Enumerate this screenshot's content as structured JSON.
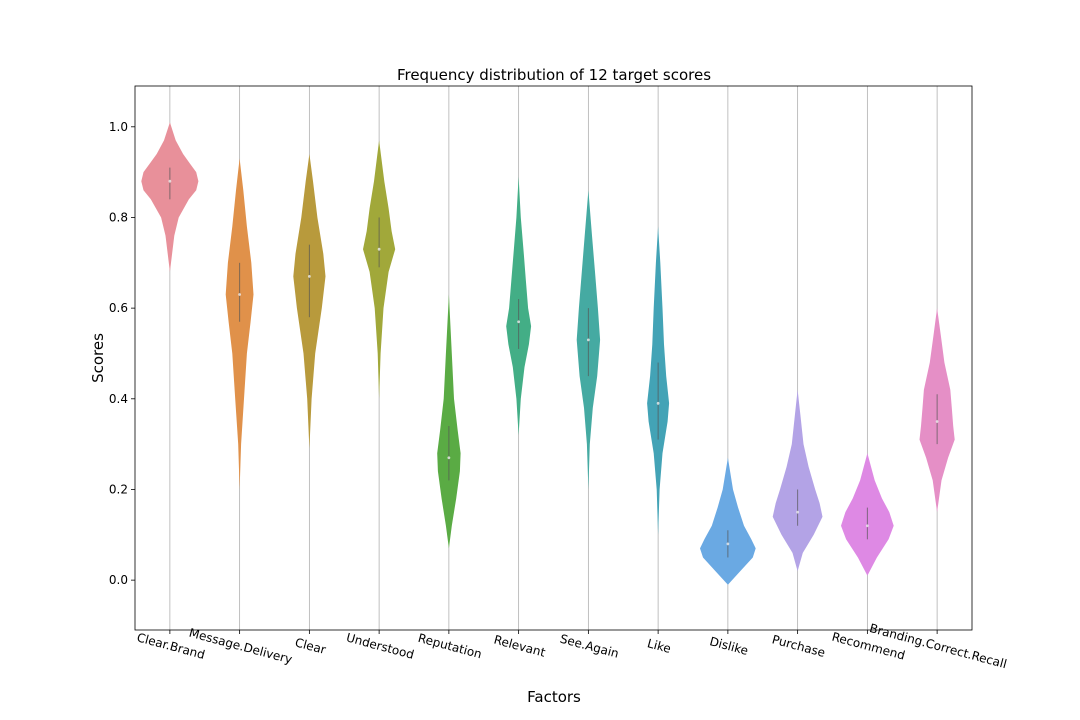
{
  "chart_data": {
    "type": "violin",
    "title": "Frequency distribution of 12 target scores",
    "xlabel": "Factors",
    "ylabel": "Scores",
    "ylim": [
      -0.11,
      1.09
    ],
    "yticks": [
      0.0,
      0.2,
      0.4,
      0.6,
      0.8,
      1.0
    ],
    "ytick_labels": [
      "0.0",
      "0.2",
      "0.4",
      "0.6",
      "0.8",
      "1.0"
    ],
    "grid": "vertical",
    "categories": [
      "Clear.Brand",
      "Message.Delivery",
      "Clear",
      "Understood",
      "Reputation",
      "Relevant",
      "See.Again",
      "Like",
      "Dislike",
      "Purchase",
      "Recommend",
      "Branding.Correct.Recall"
    ],
    "colors": [
      "#e8909a",
      "#e0914a",
      "#b89a3c",
      "#a1a83a",
      "#5aab44",
      "#43ae86",
      "#45aaa2",
      "#43a3b6",
      "#6aa9e3",
      "#b3a3e6",
      "#de89e4",
      "#e58fc6"
    ],
    "distributions": [
      {
        "min": 0.68,
        "max": 1.01,
        "q1": 0.84,
        "median": 0.88,
        "q3": 0.91,
        "profile": [
          [
            0.68,
            0.0
          ],
          [
            0.72,
            0.03
          ],
          [
            0.76,
            0.06
          ],
          [
            0.8,
            0.12
          ],
          [
            0.84,
            0.26
          ],
          [
            0.86,
            0.36
          ],
          [
            0.88,
            0.39
          ],
          [
            0.9,
            0.36
          ],
          [
            0.92,
            0.27
          ],
          [
            0.94,
            0.18
          ],
          [
            0.97,
            0.08
          ],
          [
            1.01,
            0.0
          ]
        ]
      },
      {
        "min": 0.2,
        "max": 0.93,
        "q1": 0.57,
        "median": 0.63,
        "q3": 0.7,
        "profile": [
          [
            0.2,
            0.0
          ],
          [
            0.3,
            0.02
          ],
          [
            0.4,
            0.06
          ],
          [
            0.5,
            0.1
          ],
          [
            0.57,
            0.15
          ],
          [
            0.63,
            0.19
          ],
          [
            0.7,
            0.16
          ],
          [
            0.78,
            0.1
          ],
          [
            0.86,
            0.05
          ],
          [
            0.93,
            0.0
          ]
        ]
      },
      {
        "min": 0.29,
        "max": 0.94,
        "q1": 0.58,
        "median": 0.67,
        "q3": 0.74,
        "profile": [
          [
            0.29,
            0.0
          ],
          [
            0.4,
            0.03
          ],
          [
            0.5,
            0.08
          ],
          [
            0.6,
            0.17
          ],
          [
            0.67,
            0.22
          ],
          [
            0.72,
            0.19
          ],
          [
            0.8,
            0.11
          ],
          [
            0.88,
            0.05
          ],
          [
            0.94,
            0.0
          ]
        ]
      },
      {
        "min": 0.4,
        "max": 0.97,
        "q1": 0.69,
        "median": 0.73,
        "q3": 0.8,
        "profile": [
          [
            0.4,
            0.0
          ],
          [
            0.5,
            0.02
          ],
          [
            0.6,
            0.06
          ],
          [
            0.68,
            0.13
          ],
          [
            0.73,
            0.22
          ],
          [
            0.77,
            0.17
          ],
          [
            0.82,
            0.13
          ],
          [
            0.88,
            0.07
          ],
          [
            0.97,
            0.0
          ]
        ]
      },
      {
        "min": 0.07,
        "max": 0.63,
        "q1": 0.22,
        "median": 0.27,
        "q3": 0.34,
        "profile": [
          [
            0.07,
            0.0
          ],
          [
            0.12,
            0.04
          ],
          [
            0.18,
            0.1
          ],
          [
            0.24,
            0.15
          ],
          [
            0.28,
            0.16
          ],
          [
            0.33,
            0.12
          ],
          [
            0.4,
            0.07
          ],
          [
            0.5,
            0.04
          ],
          [
            0.63,
            0.0
          ]
        ]
      },
      {
        "min": 0.32,
        "max": 0.89,
        "q1": 0.51,
        "median": 0.57,
        "q3": 0.62,
        "profile": [
          [
            0.32,
            0.0
          ],
          [
            0.4,
            0.03
          ],
          [
            0.47,
            0.08
          ],
          [
            0.52,
            0.14
          ],
          [
            0.56,
            0.17
          ],
          [
            0.6,
            0.13
          ],
          [
            0.66,
            0.1
          ],
          [
            0.72,
            0.07
          ],
          [
            0.8,
            0.03
          ],
          [
            0.89,
            0.0
          ]
        ]
      },
      {
        "min": 0.2,
        "max": 0.86,
        "q1": 0.45,
        "median": 0.53,
        "q3": 0.6,
        "profile": [
          [
            0.2,
            0.0
          ],
          [
            0.3,
            0.02
          ],
          [
            0.38,
            0.06
          ],
          [
            0.45,
            0.12
          ],
          [
            0.53,
            0.16
          ],
          [
            0.6,
            0.13
          ],
          [
            0.68,
            0.09
          ],
          [
            0.76,
            0.05
          ],
          [
            0.86,
            0.0
          ]
        ]
      },
      {
        "min": 0.1,
        "max": 0.78,
        "q1": 0.31,
        "median": 0.39,
        "q3": 0.48,
        "profile": [
          [
            0.1,
            0.0
          ],
          [
            0.2,
            0.02
          ],
          [
            0.28,
            0.06
          ],
          [
            0.35,
            0.13
          ],
          [
            0.39,
            0.15
          ],
          [
            0.45,
            0.11
          ],
          [
            0.52,
            0.08
          ],
          [
            0.6,
            0.06
          ],
          [
            0.7,
            0.03
          ],
          [
            0.78,
            0.0
          ]
        ]
      },
      {
        "min": -0.01,
        "max": 0.27,
        "q1": 0.05,
        "median": 0.08,
        "q3": 0.11,
        "profile": [
          [
            -0.01,
            0.0
          ],
          [
            0.02,
            0.17
          ],
          [
            0.05,
            0.34
          ],
          [
            0.07,
            0.38
          ],
          [
            0.09,
            0.32
          ],
          [
            0.12,
            0.22
          ],
          [
            0.16,
            0.14
          ],
          [
            0.2,
            0.07
          ],
          [
            0.27,
            0.0
          ]
        ]
      },
      {
        "min": 0.02,
        "max": 0.42,
        "q1": 0.12,
        "median": 0.15,
        "q3": 0.2,
        "profile": [
          [
            0.02,
            0.0
          ],
          [
            0.06,
            0.07
          ],
          [
            0.1,
            0.22
          ],
          [
            0.14,
            0.34
          ],
          [
            0.17,
            0.3
          ],
          [
            0.2,
            0.24
          ],
          [
            0.25,
            0.15
          ],
          [
            0.3,
            0.08
          ],
          [
            0.36,
            0.04
          ],
          [
            0.42,
            0.0
          ]
        ]
      },
      {
        "min": 0.01,
        "max": 0.28,
        "q1": 0.09,
        "median": 0.12,
        "q3": 0.16,
        "profile": [
          [
            0.01,
            0.0
          ],
          [
            0.05,
            0.13
          ],
          [
            0.09,
            0.29
          ],
          [
            0.12,
            0.36
          ],
          [
            0.15,
            0.3
          ],
          [
            0.18,
            0.2
          ],
          [
            0.22,
            0.1
          ],
          [
            0.28,
            0.0
          ]
        ]
      },
      {
        "min": 0.15,
        "max": 0.6,
        "q1": 0.3,
        "median": 0.35,
        "q3": 0.41,
        "profile": [
          [
            0.15,
            0.0
          ],
          [
            0.22,
            0.06
          ],
          [
            0.27,
            0.15
          ],
          [
            0.31,
            0.24
          ],
          [
            0.34,
            0.22
          ],
          [
            0.38,
            0.2
          ],
          [
            0.42,
            0.18
          ],
          [
            0.48,
            0.1
          ],
          [
            0.54,
            0.05
          ],
          [
            0.6,
            0.0
          ]
        ]
      }
    ]
  }
}
